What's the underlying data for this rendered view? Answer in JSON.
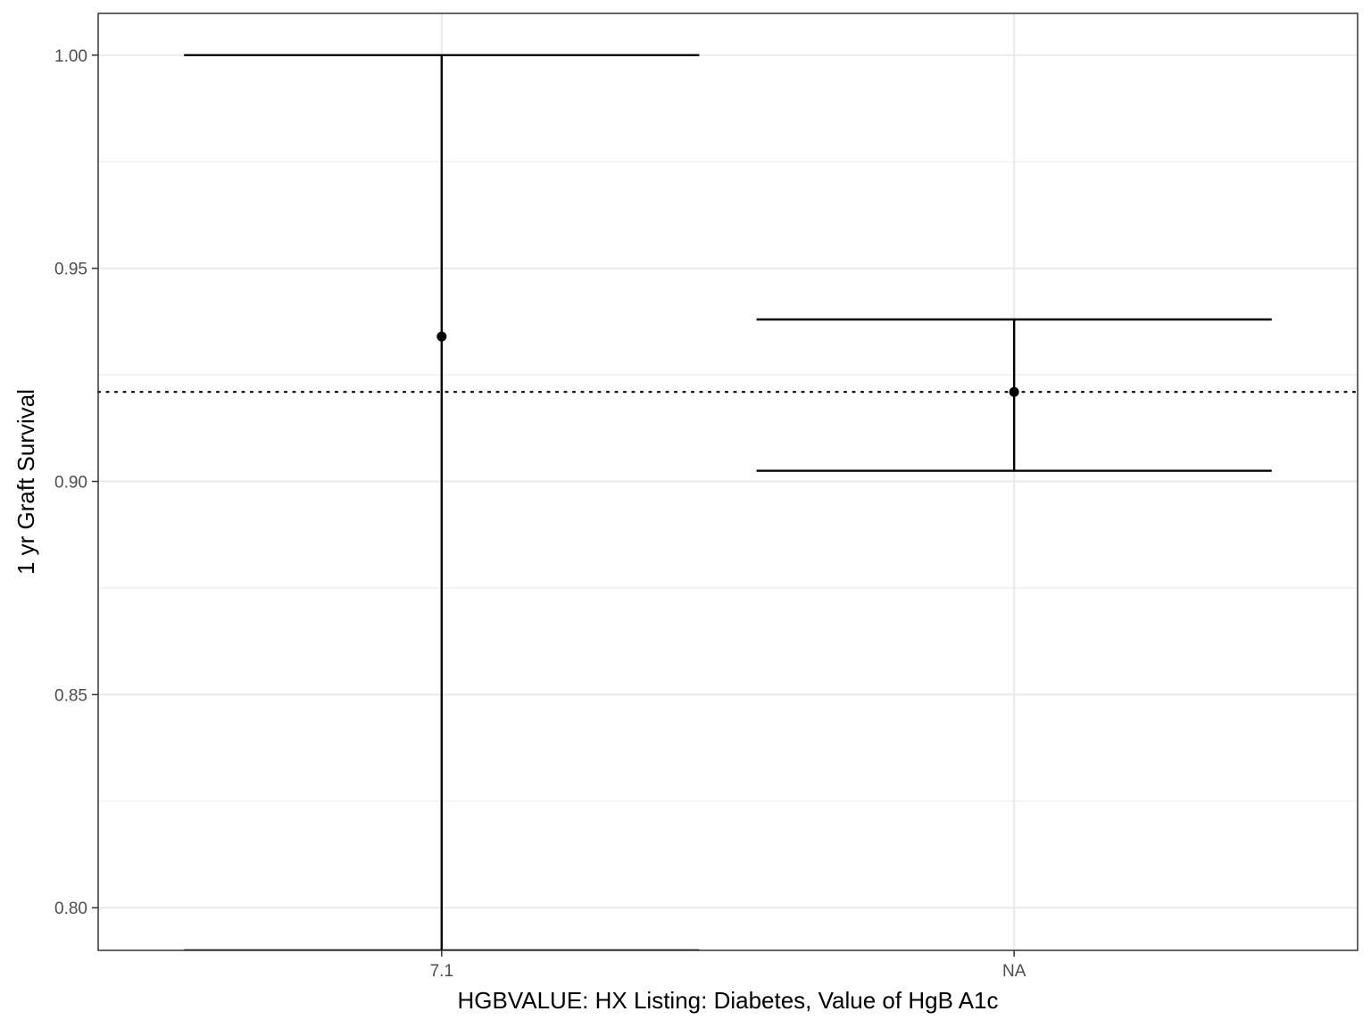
{
  "chart_data": {
    "type": "errorbar",
    "xlabel": "HGBVALUE: HX Listing: Diabetes, Value of HgB A1c",
    "ylabel": "1 yr Graft Survival",
    "categories": [
      "7.1",
      "NA"
    ],
    "points": [
      {
        "category": "7.1",
        "estimate": 0.934,
        "lower": 0.79,
        "upper": 1.0
      },
      {
        "category": "NA",
        "estimate": 0.921,
        "lower": 0.9025,
        "upper": 0.938
      }
    ],
    "reference_line": {
      "value": 0.921,
      "style": "dotted"
    },
    "ylim": [
      0.79,
      1.0098
    ],
    "yticks": [
      0.8,
      0.85,
      0.9,
      0.95,
      1.0
    ],
    "ytick_labels": [
      "0.80",
      "0.85",
      "0.90",
      "0.95",
      "1.00"
    ],
    "grid": true,
    "colors": {
      "mark": "#000000",
      "grid": "#ebebeb",
      "panel_border": "#333333",
      "tick_text": "#4d4d4d"
    }
  }
}
